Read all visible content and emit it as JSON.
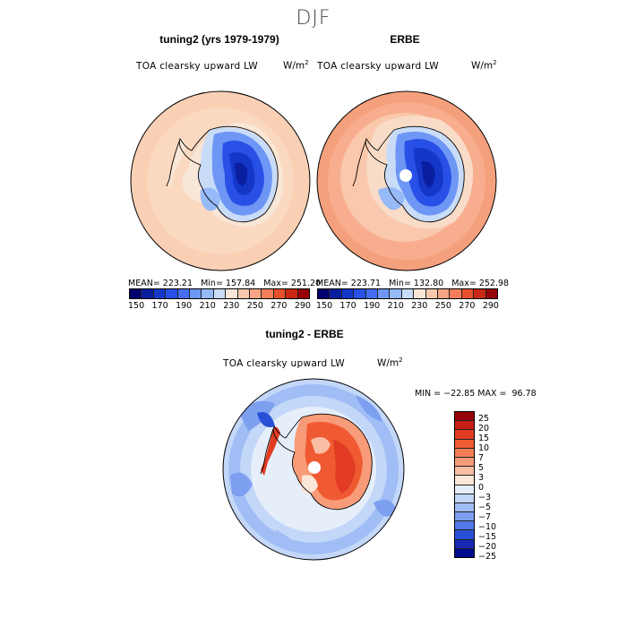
{
  "season": "DJF",
  "panels": {
    "left": {
      "title": "tuning2 (yrs 1979-1979)",
      "field": "TOA clearsky upward LW",
      "unit": "W/m",
      "unit_sup": "2",
      "stats": "MEAN= 223.21   Min= 157.84   Max= 251.20"
    },
    "right": {
      "title": "ERBE",
      "field": "TOA clearsky upward LW",
      "unit": "W/m",
      "unit_sup": "2",
      "stats": "MEAN= 223.71   Min= 132.80   Max= 252.98"
    },
    "diff": {
      "title": "tuning2 - ERBE",
      "field": "TOA clearsky upward LW",
      "unit": "W/m",
      "unit_sup": "2",
      "minmax": "MIN = −22.85 MAX =  96.78"
    }
  },
  "colorbar_abs": {
    "ticks": [
      "150",
      "170",
      "190",
      "210",
      "230",
      "250",
      "270",
      "290"
    ],
    "colors": [
      "#00006e",
      "#0a1ea0",
      "#1437c8",
      "#2850e6",
      "#466ef0",
      "#6e96f5",
      "#96b9f7",
      "#c8dcf8",
      "#f8e6d7",
      "#fac8ac",
      "#f8a486",
      "#f57d5a",
      "#e6502d",
      "#c82814",
      "#96000a"
    ]
  },
  "colorbar_diff": {
    "ticks": [
      "25",
      "20",
      "15",
      "10",
      "7",
      "5",
      "3",
      "0",
      "−3",
      "−5",
      "−7",
      "−10",
      "−15",
      "−20",
      "−25"
    ],
    "colors": [
      "#96000a",
      "#c81e14",
      "#e13c23",
      "#f05a32",
      "#f57d55",
      "#f89b78",
      "#fabea5",
      "#fce6d7",
      "#e6eefa",
      "#c3d7f8",
      "#a0bef5",
      "#7d9ff0",
      "#5078e6",
      "#2850d7",
      "#1428b4",
      "#000a8c"
    ]
  }
}
